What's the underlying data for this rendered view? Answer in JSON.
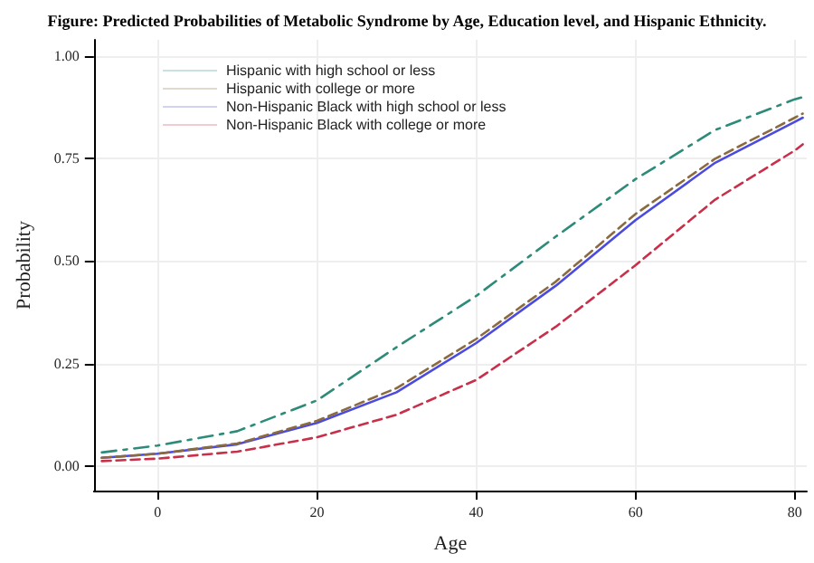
{
  "chart_data": {
    "type": "line",
    "title": "Figure: Predicted Probabilities of Metabolic Syndrome by Age, Education level, and Hispanic Ethnicity.",
    "xlabel": "Age",
    "ylabel": "Probability",
    "xlim": [
      -8,
      81.5
    ],
    "ylim": [
      -0.06,
      1.04
    ],
    "xticks": [
      0,
      20,
      40,
      60,
      80
    ],
    "yticks": [
      {
        "value": 0,
        "label": "0.00"
      },
      {
        "value": 0.25,
        "label": "0.25"
      },
      {
        "value": 0.5,
        "label": "0.50"
      },
      {
        "value": 0.75,
        "label": "0.75"
      },
      {
        "value": 1,
        "label": "1.00"
      }
    ],
    "grid": true,
    "legend": "top left",
    "marker": "none",
    "series": [
      {
        "name": "Hispanic with high school or less",
        "color": "#2e8b7a",
        "line_style": "dashdot",
        "x": [
          -7,
          0,
          10,
          20,
          30,
          40,
          50,
          60,
          70,
          80,
          81
        ],
        "values": [
          0.033,
          0.05,
          0.085,
          0.16,
          0.29,
          0.415,
          0.56,
          0.7,
          0.82,
          0.895,
          0.9
        ]
      },
      {
        "name": "Hispanic with college or more",
        "color": "#8b6a3e",
        "line_style": "dashed",
        "x": [
          -7,
          0,
          10,
          20,
          30,
          40,
          50,
          60,
          70,
          80,
          81
        ],
        "values": [
          0.02,
          0.03,
          0.055,
          0.11,
          0.19,
          0.31,
          0.45,
          0.615,
          0.75,
          0.85,
          0.86
        ]
      },
      {
        "name": "Non-Hispanic Black with high school or less",
        "color": "#4b4bdf",
        "line_style": "solid",
        "x": [
          -7,
          0,
          10,
          20,
          30,
          40,
          50,
          60,
          70,
          80,
          81
        ],
        "values": [
          0.02,
          0.03,
          0.053,
          0.105,
          0.18,
          0.3,
          0.44,
          0.6,
          0.74,
          0.84,
          0.85
        ]
      },
      {
        "name": "Non-Hispanic Black with college or more",
        "color": "#c8304a",
        "line_style": "dashed",
        "x": [
          -7,
          0,
          10,
          20,
          30,
          40,
          50,
          60,
          70,
          80,
          81
        ],
        "values": [
          0.012,
          0.018,
          0.035,
          0.07,
          0.125,
          0.21,
          0.34,
          0.49,
          0.65,
          0.77,
          0.785
        ]
      }
    ]
  }
}
